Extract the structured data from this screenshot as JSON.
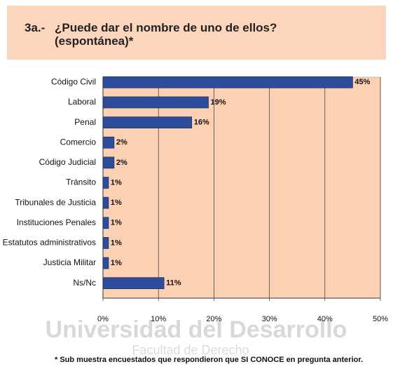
{
  "chart_data": {
    "type": "bar",
    "orientation": "horizontal",
    "title_number": "3a.-",
    "title": "¿Puede dar el nombre de uno de ellos? (espontánea)*",
    "categories": [
      "Código Civil",
      "Laboral",
      "Penal",
      "Comercio",
      "Código Judicial",
      "Tránsito",
      "Tribunales de Justicia",
      "Instituciones Penales",
      "Estatutos administrativos",
      "Justicia Militar",
      "Ns/Nc"
    ],
    "values": [
      45,
      19,
      16,
      2,
      2,
      1,
      1,
      1,
      1,
      1,
      11
    ],
    "value_labels": [
      "45%",
      "19%",
      "16%",
      "2%",
      "2%",
      "1%",
      "1%",
      "1%",
      "1%",
      "1%",
      "11%"
    ],
    "color": "#2d4d9c",
    "xlim": [
      0,
      50
    ],
    "xticks": [
      {
        "value": 0,
        "label": "0%"
      },
      {
        "value": 10,
        "label": "10%"
      },
      {
        "value": 20,
        "label": "20%"
      },
      {
        "value": 30,
        "label": "30%"
      },
      {
        "value": 40,
        "label": "40%"
      },
      {
        "value": 50,
        "label": "50%"
      }
    ],
    "grid": true,
    "footnote": "* Sub muestra encuestados que respondieron que SI CONOCE en pregunta anterior.",
    "watermark": [
      "Universidad del Desarrollo",
      "Facultad de Derecho"
    ]
  }
}
